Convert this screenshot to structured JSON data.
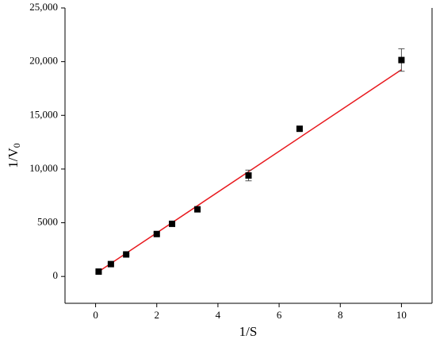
{
  "chart_data": {
    "type": "scatter",
    "xlabel": "1/S",
    "ylabel": "1/V",
    "ylabel_sub": "0",
    "x": [
      0.1,
      0.5,
      1,
      2,
      2.5,
      3.33,
      5,
      6.67,
      10
    ],
    "values": [
      450,
      1150,
      2050,
      3950,
      4900,
      6250,
      9400,
      13750,
      20150
    ],
    "errors": [
      100,
      100,
      100,
      150,
      100,
      150,
      500,
      150,
      1050
    ],
    "color": "#000000",
    "fit": {
      "x": [
        0.1,
        10
      ],
      "values": [
        450,
        19250
      ],
      "color": "#e8191e"
    },
    "xlim": [
      -1,
      11
    ],
    "ylim": [
      -2500,
      25000
    ],
    "xticks": [
      0,
      2,
      4,
      6,
      8,
      10
    ],
    "yticks": [
      0,
      5000,
      {
        "value": 10000,
        "label": "10,000"
      },
      {
        "value": 15000,
        "label": "15,000"
      },
      {
        "value": 20000,
        "label": "20,000"
      },
      {
        "value": 25000,
        "label": "25,000"
      }
    ]
  }
}
